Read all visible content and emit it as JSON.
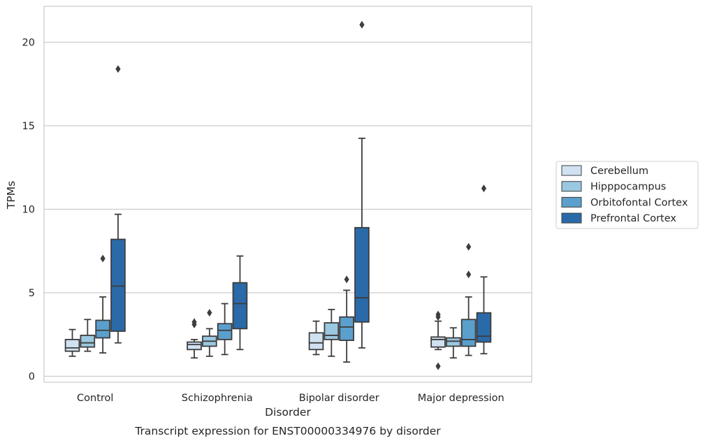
{
  "chart_data": {
    "type": "box",
    "xlabel": "Disorder",
    "ylabel": "TPMs",
    "caption": "Transcript expression for ENST00000334976 by disorder",
    "ylim": [
      -0.4,
      22.1
    ],
    "yticks": [
      0,
      5,
      10,
      15,
      20
    ],
    "grid": "horizontal",
    "legend_position": "right",
    "categories": [
      "Control",
      "Schizophrenia",
      "Bipolar disorder",
      "Major depression"
    ],
    "series": [
      {
        "name": "Cerebellum",
        "color": "#d0e1f2",
        "boxes": [
          {
            "whislo": 1.2,
            "q1": 1.5,
            "med": 1.7,
            "q3": 2.2,
            "whishi": 2.8,
            "fliers": []
          },
          {
            "whislo": 1.1,
            "q1": 1.6,
            "med": 1.9,
            "q3": 2.05,
            "whishi": 2.2,
            "fliers": [
              3.1,
              3.25
            ]
          },
          {
            "whislo": 1.3,
            "q1": 1.6,
            "med": 2.0,
            "q3": 2.6,
            "whishi": 3.3,
            "fliers": []
          },
          {
            "whislo": 1.6,
            "q1": 1.75,
            "med": 2.2,
            "q3": 2.35,
            "whishi": 3.3,
            "fliers": [
              0.6,
              3.55,
              3.7
            ]
          }
        ]
      },
      {
        "name": "Hipppocampus",
        "color": "#9ac8e0",
        "boxes": [
          {
            "whislo": 1.5,
            "q1": 1.75,
            "med": 2.0,
            "q3": 2.45,
            "whishi": 3.4,
            "fliers": []
          },
          {
            "whislo": 1.2,
            "q1": 1.8,
            "med": 2.1,
            "q3": 2.4,
            "whishi": 2.85,
            "fliers": [
              3.8
            ]
          },
          {
            "whislo": 1.2,
            "q1": 2.2,
            "med": 2.45,
            "q3": 3.2,
            "whishi": 4.0,
            "fliers": []
          },
          {
            "whislo": 1.1,
            "q1": 1.8,
            "med": 2.1,
            "q3": 2.3,
            "whishi": 2.9,
            "fliers": []
          }
        ]
      },
      {
        "name": "Orbitofontal Cortex",
        "color": "#5b9fcc",
        "boxes": [
          {
            "whislo": 1.4,
            "q1": 2.3,
            "med": 2.75,
            "q3": 3.35,
            "whishi": 4.75,
            "fliers": [
              7.05
            ]
          },
          {
            "whislo": 1.3,
            "q1": 2.2,
            "med": 2.75,
            "q3": 3.15,
            "whishi": 4.35,
            "fliers": []
          },
          {
            "whislo": 0.85,
            "q1": 2.15,
            "med": 2.95,
            "q3": 3.55,
            "whishi": 5.15,
            "fliers": [
              5.8
            ]
          },
          {
            "whislo": 1.25,
            "q1": 1.8,
            "med": 2.2,
            "q3": 3.4,
            "whishi": 4.75,
            "fliers": [
              6.1,
              7.75
            ]
          }
        ]
      },
      {
        "name": "Prefrontal Cortex",
        "color": "#2b6aa8",
        "boxes": [
          {
            "whislo": 2.0,
            "q1": 2.7,
            "med": 5.4,
            "q3": 8.2,
            "whishi": 9.7,
            "fliers": [
              18.4
            ]
          },
          {
            "whislo": 1.6,
            "q1": 2.85,
            "med": 4.35,
            "q3": 5.6,
            "whishi": 7.2,
            "fliers": []
          },
          {
            "whislo": 1.7,
            "q1": 3.25,
            "med": 4.7,
            "q3": 8.9,
            "whishi": 14.25,
            "fliers": [
              21.05
            ]
          },
          {
            "whislo": 1.35,
            "q1": 2.05,
            "med": 2.4,
            "q3": 3.8,
            "whishi": 5.95,
            "fliers": [
              11.25
            ]
          }
        ]
      }
    ]
  }
}
